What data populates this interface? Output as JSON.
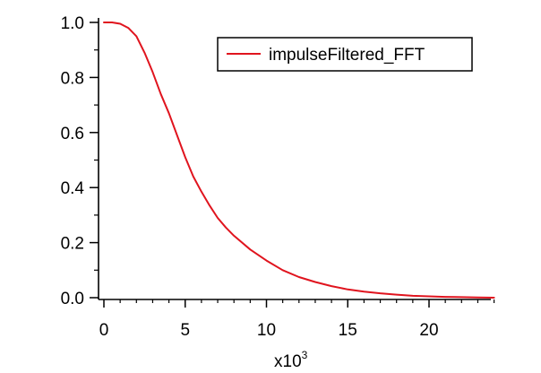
{
  "chart_data": {
    "type": "line",
    "title": "",
    "xlabel": "",
    "ylabel": "",
    "x_multiplier_label": {
      "base": "x10",
      "exponent": "3"
    },
    "xlim": [
      0,
      24
    ],
    "ylim": [
      0,
      1.0
    ],
    "x_ticks": [
      0,
      5,
      10,
      15,
      20
    ],
    "x_tick_labels": [
      "0",
      "5",
      "10",
      "15",
      "20"
    ],
    "y_ticks": [
      0.0,
      0.2,
      0.4,
      0.6,
      0.8,
      1.0
    ],
    "y_tick_labels": [
      "0.0",
      "0.2",
      "0.4",
      "0.6",
      "0.8",
      "1.0"
    ],
    "grid": false,
    "legend_position": "top-right",
    "series": [
      {
        "name": "impulseFiltered_FFT",
        "color": "#e0141e",
        "x": [
          0,
          0.5,
          1,
          1.5,
          2,
          2.5,
          3,
          3.5,
          4,
          4.5,
          5,
          5.5,
          6,
          6.5,
          7,
          7.5,
          8,
          9,
          10,
          11,
          12,
          13,
          14,
          15,
          16,
          17,
          18,
          19,
          20,
          21,
          22,
          23,
          24
        ],
        "y": [
          1.0,
          1.0,
          0.995,
          0.98,
          0.95,
          0.89,
          0.82,
          0.74,
          0.67,
          0.59,
          0.51,
          0.44,
          0.385,
          0.335,
          0.29,
          0.255,
          0.225,
          0.175,
          0.135,
          0.1,
          0.075,
          0.057,
          0.042,
          0.03,
          0.022,
          0.016,
          0.011,
          0.007,
          0.005,
          0.003,
          0.002,
          0.001,
          0.0
        ]
      }
    ]
  }
}
